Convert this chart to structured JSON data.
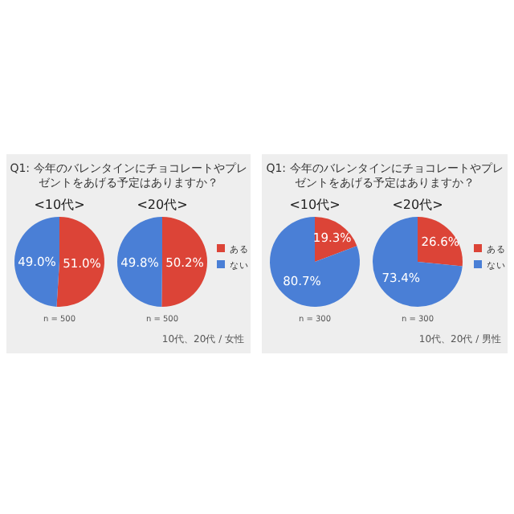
{
  "chart_data": [
    {
      "type": "pie",
      "title": "Q1: 今年のバレンタインにチョコレートやプレゼントをあげる予定はありますか？",
      "categories": [
        "ある",
        "ない"
      ],
      "colors": [
        "#dc4437",
        "#4a7fd6"
      ],
      "legend": "right",
      "series": [
        {
          "name": "<10代>",
          "values": [
            51.0,
            49.0
          ],
          "value_labels": [
            "51.0%",
            "49.0%"
          ]
        },
        {
          "name": "<20代>",
          "values": [
            50.2,
            49.8
          ],
          "value_labels": [
            "50.2%",
            "49.8%"
          ]
        }
      ],
      "annotations": [
        "n = 500",
        "n = 500",
        "10代、20代 / 女性"
      ]
    },
    {
      "type": "pie",
      "title": "Q1: 今年のバレンタインにチョコレートやプレゼントをあげる予定はありますか？",
      "categories": [
        "ある",
        "ない"
      ],
      "colors": [
        "#dc4437",
        "#4a7fd6"
      ],
      "legend": "right",
      "series": [
        {
          "name": "<10代>",
          "values": [
            19.3,
            80.7
          ],
          "value_labels": [
            "19.3%",
            "80.7%"
          ]
        },
        {
          "name": "<20代>",
          "values": [
            26.6,
            73.4
          ],
          "value_labels": [
            "26.6%",
            "73.4%"
          ]
        }
      ],
      "annotations": [
        "n = 300",
        "n = 300",
        "10代、20代 / 男性"
      ]
    }
  ]
}
